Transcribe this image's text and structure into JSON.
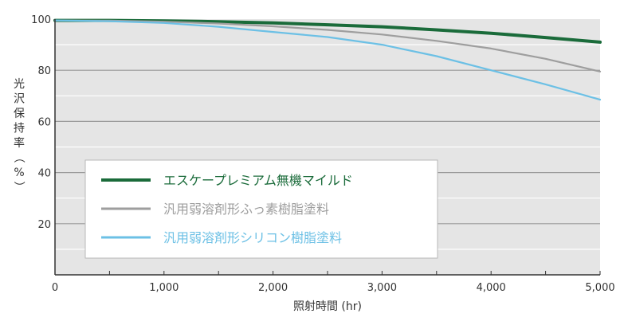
{
  "chart_data": {
    "type": "line",
    "xlabel": "照射時間 (hr)",
    "ylabel": "光沢保持率（%）",
    "xlim": [
      0,
      5000
    ],
    "ylim": [
      0,
      100
    ],
    "x_ticks": [
      0,
      1000,
      2000,
      3000,
      4000,
      5000
    ],
    "x_tick_labels": [
      "0",
      "1,000",
      "2,000",
      "3,000",
      "4,000",
      "5,000"
    ],
    "y_ticks": [
      20,
      40,
      60,
      80,
      100
    ],
    "y_tick_labels": [
      "20",
      "40",
      "60",
      "80",
      "100"
    ],
    "grid": "horizontal",
    "legend_position": "lower-left",
    "colors": {
      "plot_background": "#e5e5e5",
      "grid": "#ffffff",
      "axis": "#333333"
    },
    "series": [
      {
        "name": "エスケープレミアム無機マイルド",
        "color": "#1a6b3a",
        "x": [
          0,
          500,
          1000,
          1500,
          2000,
          2500,
          3000,
          3500,
          4000,
          4500,
          5000
        ],
        "y": [
          99.5,
          99.5,
          99.3,
          99.0,
          98.5,
          97.8,
          97.0,
          95.8,
          94.5,
          92.8,
          91.0
        ]
      },
      {
        "name": "汎用弱溶剤形ふっ素樹脂塗料",
        "color": "#9e9e9e",
        "x": [
          0,
          500,
          1000,
          1500,
          2000,
          2500,
          3000,
          3500,
          4000,
          4500,
          5000
        ],
        "y": [
          99.5,
          99.4,
          99.0,
          98.3,
          97.2,
          95.8,
          94.0,
          91.5,
          88.5,
          84.5,
          79.5
        ]
      },
      {
        "name": "汎用弱溶剤形シリコン樹脂塗料",
        "color": "#6cc0e5",
        "x": [
          0,
          500,
          1000,
          1500,
          2000,
          2500,
          3000,
          3500,
          4000,
          4500,
          5000
        ],
        "y": [
          99.5,
          99.2,
          98.5,
          97.0,
          95.0,
          93.0,
          90.0,
          85.5,
          80.0,
          74.5,
          68.5
        ]
      }
    ]
  }
}
